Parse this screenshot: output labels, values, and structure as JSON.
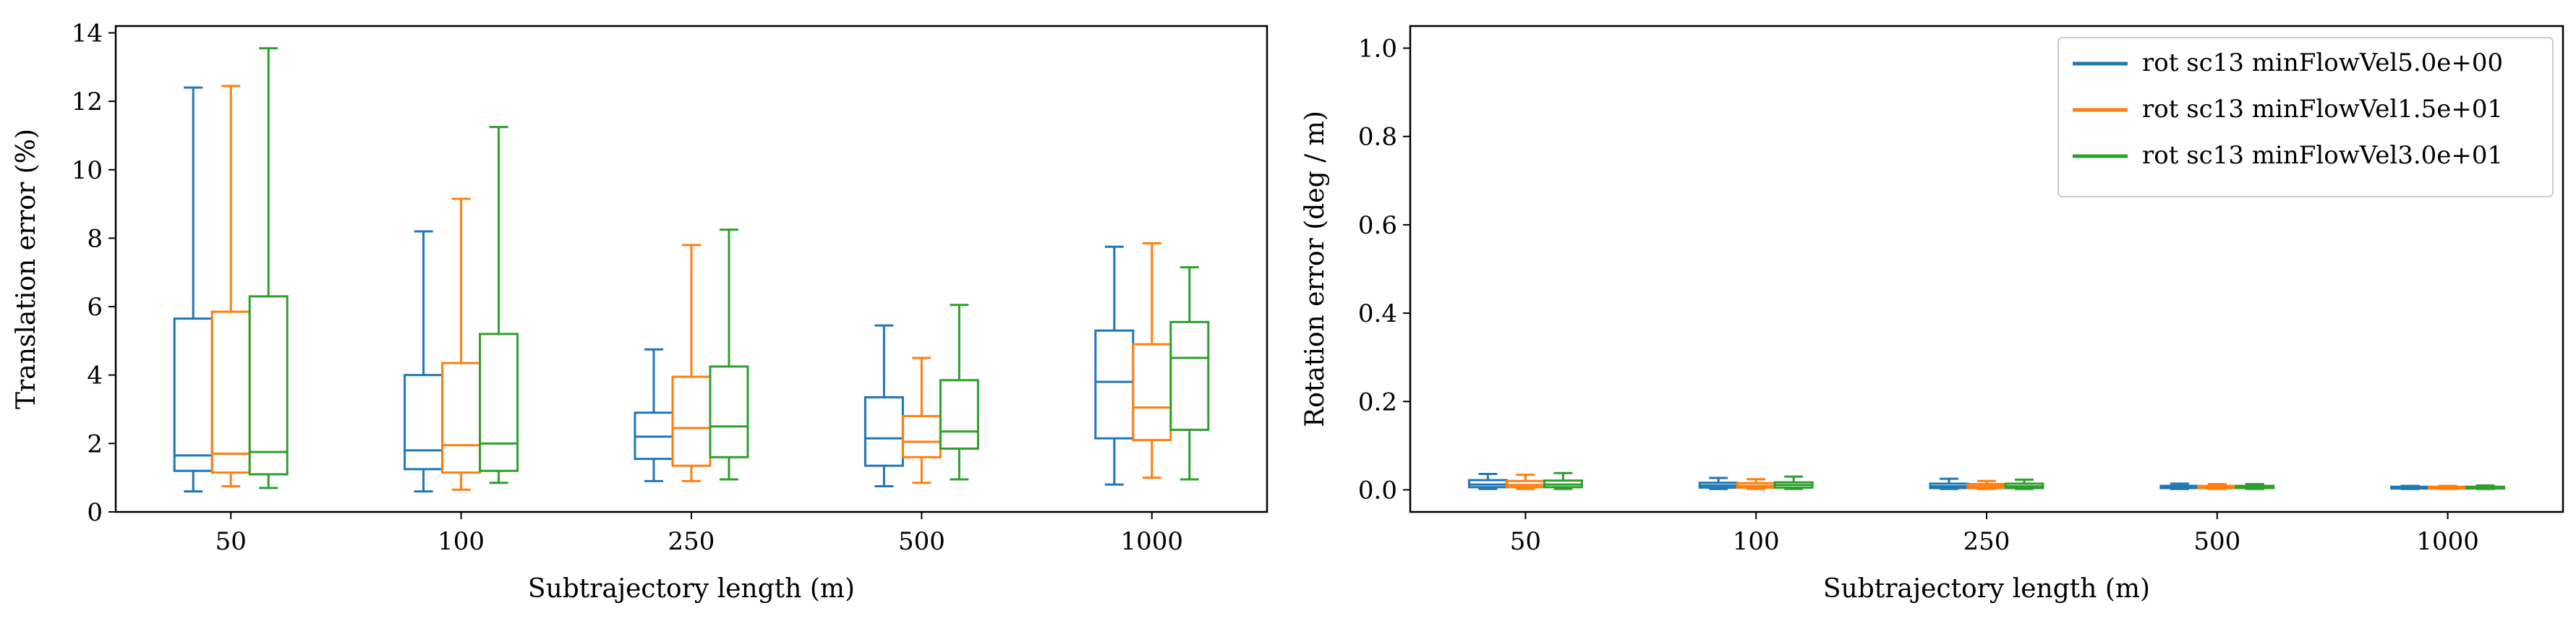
{
  "chart_data": [
    {
      "type": "box",
      "xlabel": "Subtrajectory length (m)",
      "ylabel": "Translation error (%)",
      "ylim": [
        0,
        14.2
      ],
      "yticks": [
        0,
        2,
        4,
        6,
        8,
        10,
        12,
        14
      ],
      "categories": [
        "50",
        "100",
        "250",
        "500",
        "1000"
      ],
      "legend": false,
      "series": [
        {
          "color": "#1f77b4",
          "boxes": [
            {
              "min": 0.6,
              "q1": 1.2,
              "median": 1.65,
              "q3": 5.65,
              "max": 12.4
            },
            {
              "min": 0.6,
              "q1": 1.25,
              "median": 1.8,
              "q3": 4.0,
              "max": 8.2
            },
            {
              "min": 0.9,
              "q1": 1.55,
              "median": 2.2,
              "q3": 2.9,
              "max": 4.75
            },
            {
              "min": 0.75,
              "q1": 1.35,
              "median": 2.15,
              "q3": 3.35,
              "max": 5.45
            },
            {
              "min": 0.8,
              "q1": 2.15,
              "median": 3.8,
              "q3": 5.3,
              "max": 7.75
            }
          ]
        },
        {
          "color": "#ff7f0e",
          "boxes": [
            {
              "min": 0.75,
              "q1": 1.15,
              "median": 1.7,
              "q3": 5.85,
              "max": 12.45
            },
            {
              "min": 0.65,
              "q1": 1.15,
              "median": 1.95,
              "q3": 4.35,
              "max": 9.15
            },
            {
              "min": 0.9,
              "q1": 1.35,
              "median": 2.45,
              "q3": 3.95,
              "max": 7.8
            },
            {
              "min": 0.85,
              "q1": 1.6,
              "median": 2.05,
              "q3": 2.8,
              "max": 4.5
            },
            {
              "min": 1.0,
              "q1": 2.1,
              "median": 3.05,
              "q3": 4.9,
              "max": 7.85
            }
          ]
        },
        {
          "color": "#2ca02c",
          "boxes": [
            {
              "min": 0.7,
              "q1": 1.1,
              "median": 1.75,
              "q3": 6.3,
              "max": 13.55
            },
            {
              "min": 0.85,
              "q1": 1.2,
              "median": 2.0,
              "q3": 5.2,
              "max": 11.25
            },
            {
              "min": 0.95,
              "q1": 1.6,
              "median": 2.5,
              "q3": 4.25,
              "max": 8.25
            },
            {
              "min": 0.95,
              "q1": 1.85,
              "median": 2.35,
              "q3": 3.85,
              "max": 6.05
            },
            {
              "min": 0.95,
              "q1": 2.4,
              "median": 4.5,
              "q3": 5.55,
              "max": 7.15
            }
          ]
        }
      ]
    },
    {
      "type": "box",
      "xlabel": "Subtrajectory length (m)",
      "ylabel": "Rotation error (deg / m)",
      "ylim": [
        -0.05,
        1.05
      ],
      "yticks": [
        0.0,
        0.2,
        0.4,
        0.6,
        0.8,
        1.0
      ],
      "categories": [
        "50",
        "100",
        "250",
        "500",
        "1000"
      ],
      "legend": "top-right",
      "series": [
        {
          "name": "rot sc13 minFlowVel5.0e+00",
          "color": "#1f77b4",
          "boxes": [
            {
              "min": 0.002,
              "q1": 0.006,
              "median": 0.012,
              "q3": 0.022,
              "max": 0.036
            },
            {
              "min": 0.002,
              "q1": 0.005,
              "median": 0.01,
              "q3": 0.016,
              "max": 0.027
            },
            {
              "min": 0.002,
              "q1": 0.004,
              "median": 0.008,
              "q3": 0.014,
              "max": 0.025
            },
            {
              "min": 0.002,
              "q1": 0.004,
              "median": 0.006,
              "q3": 0.009,
              "max": 0.014
            },
            {
              "min": 0.002,
              "q1": 0.003,
              "median": 0.005,
              "q3": 0.007,
              "max": 0.009
            }
          ]
        },
        {
          "name": "rot sc13 minFlowVel1.5e+01",
          "color": "#ff7f0e",
          "boxes": [
            {
              "min": 0.002,
              "q1": 0.006,
              "median": 0.011,
              "q3": 0.02,
              "max": 0.034
            },
            {
              "min": 0.002,
              "q1": 0.005,
              "median": 0.009,
              "q3": 0.015,
              "max": 0.024
            },
            {
              "min": 0.002,
              "q1": 0.004,
              "median": 0.008,
              "q3": 0.013,
              "max": 0.02
            },
            {
              "min": 0.002,
              "q1": 0.004,
              "median": 0.006,
              "q3": 0.009,
              "max": 0.013
            },
            {
              "min": 0.002,
              "q1": 0.003,
              "median": 0.005,
              "q3": 0.007,
              "max": 0.009
            }
          ]
        },
        {
          "name": "rot sc13 minFlowVel3.0e+01",
          "color": "#2ca02c",
          "boxes": [
            {
              "min": 0.002,
              "q1": 0.006,
              "median": 0.012,
              "q3": 0.021,
              "max": 0.038
            },
            {
              "min": 0.002,
              "q1": 0.005,
              "median": 0.011,
              "q3": 0.017,
              "max": 0.03
            },
            {
              "min": 0.002,
              "q1": 0.004,
              "median": 0.008,
              "q3": 0.014,
              "max": 0.023
            },
            {
              "min": 0.002,
              "q1": 0.004,
              "median": 0.006,
              "q3": 0.009,
              "max": 0.013
            },
            {
              "min": 0.002,
              "q1": 0.003,
              "median": 0.005,
              "q3": 0.007,
              "max": 0.01
            }
          ]
        }
      ]
    }
  ]
}
